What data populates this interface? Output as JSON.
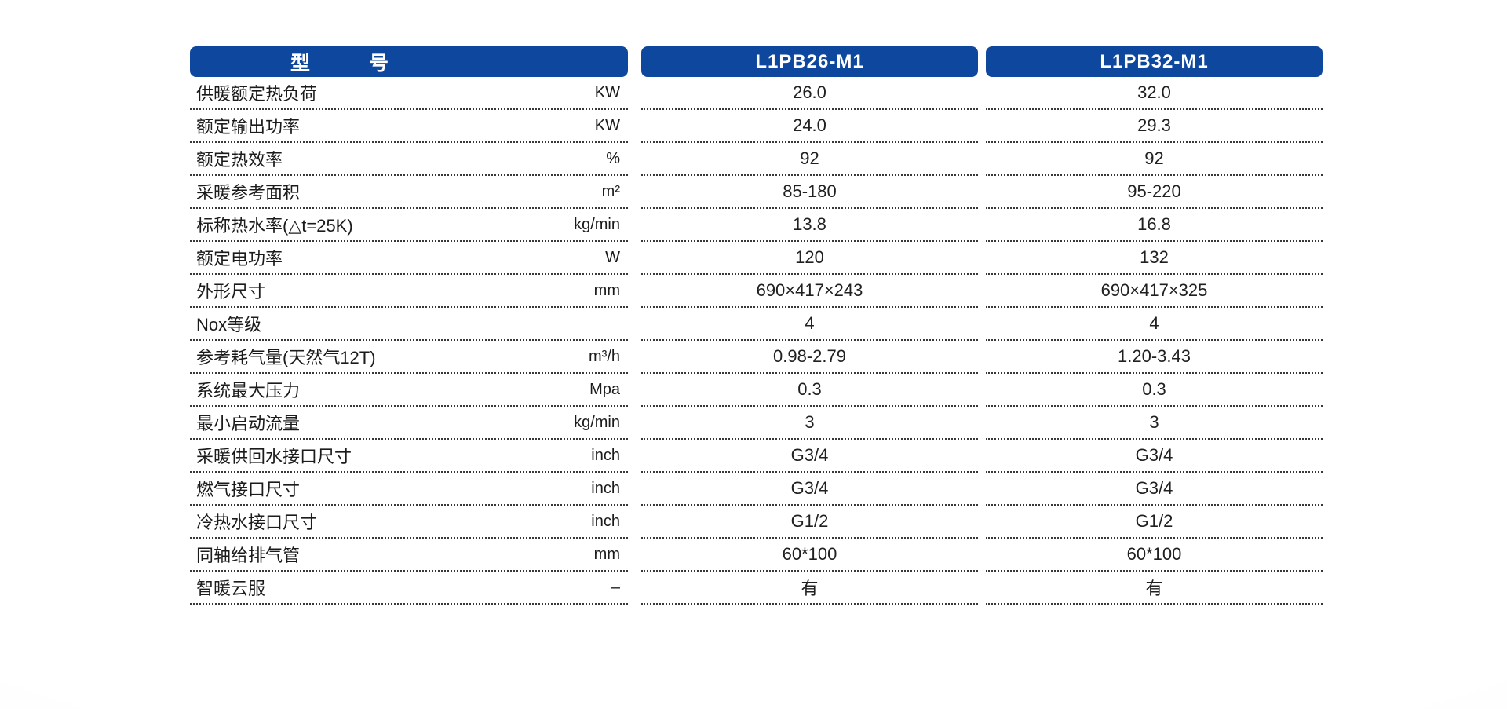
{
  "colors": {
    "header_blue": "#0d479e",
    "text": "#1b1b1b",
    "dotted_line": "#383838"
  },
  "table": {
    "header": {
      "label_column": "型　　　号",
      "columns": [
        "L1PB26-M1",
        "L1PB32-M1"
      ]
    },
    "rows": [
      {
        "label": "供暖额定热负荷",
        "unit": "KW",
        "values": [
          "26.0",
          "32.0"
        ]
      },
      {
        "label": "额定输出功率",
        "unit": "KW",
        "values": [
          "24.0",
          "29.3"
        ]
      },
      {
        "label": "额定热效率",
        "unit": "%",
        "values": [
          "92",
          "92"
        ]
      },
      {
        "label": "采暖参考面积",
        "unit": "m²",
        "values": [
          "85-180",
          "95-220"
        ]
      },
      {
        "label": "标称热水率(△t=25K)",
        "unit": "kg/min",
        "values": [
          "13.8",
          "16.8"
        ]
      },
      {
        "label": "额定电功率",
        "unit": "W",
        "values": [
          "120",
          "132"
        ]
      },
      {
        "label": "外形尺寸",
        "unit": "mm",
        "values": [
          "690×417×243",
          "690×417×325"
        ]
      },
      {
        "label": "Nox等级",
        "unit": "",
        "values": [
          "4",
          "4"
        ]
      },
      {
        "label": "参考耗气量(天然气12T)",
        "unit": "m³/h",
        "values": [
          "0.98-2.79",
          "1.20-3.43"
        ]
      },
      {
        "label": "系统最大压力",
        "unit": "Mpa",
        "values": [
          "0.3",
          "0.3"
        ]
      },
      {
        "label": "最小启动流量",
        "unit": "kg/min",
        "values": [
          "3",
          "3"
        ]
      },
      {
        "label": "采暖供回水接口尺寸",
        "unit": "inch",
        "values": [
          "G3/4",
          "G3/4"
        ]
      },
      {
        "label": "燃气接口尺寸",
        "unit": "inch",
        "values": [
          "G3/4",
          "G3/4"
        ]
      },
      {
        "label": "冷热水接口尺寸",
        "unit": "inch",
        "values": [
          "G1/2",
          "G1/2"
        ]
      },
      {
        "label": "同轴给排气管",
        "unit": "mm",
        "values": [
          "60*100",
          "60*100"
        ]
      },
      {
        "label": "智暖云服",
        "unit": "–",
        "values": [
          "有",
          "有"
        ]
      }
    ]
  }
}
